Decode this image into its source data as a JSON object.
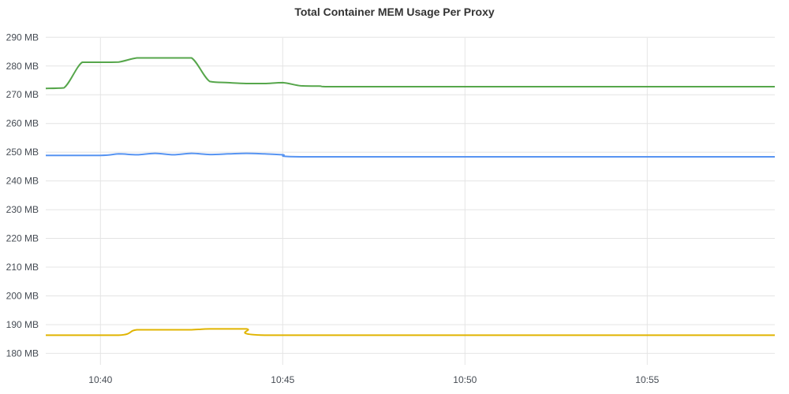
{
  "panel": {
    "title": "Total Container MEM Usage Per Proxy"
  },
  "chart_data": {
    "type": "line",
    "title": "Total Container MEM Usage Per Proxy",
    "xlabel": "",
    "ylabel": "",
    "grid": true,
    "legend": "none",
    "x_range": [
      "10:38:30",
      "10:58:30"
    ],
    "ylim": [
      176,
      292
    ],
    "y_ticks": [
      180,
      190,
      200,
      210,
      220,
      230,
      240,
      250,
      260,
      270,
      280,
      290
    ],
    "y_tick_labels": [
      "180 MB",
      "190 MB",
      "200 MB",
      "210 MB",
      "220 MB",
      "230 MB",
      "240 MB",
      "250 MB",
      "260 MB",
      "270 MB",
      "280 MB",
      "290 MB"
    ],
    "x_ticks": [
      "10:40",
      "10:45",
      "10:50",
      "10:55"
    ],
    "series": [
      {
        "color": "#56a64b",
        "x": [
          "10:38:30",
          "10:39:00",
          "10:39:30",
          "10:40:00",
          "10:40:30",
          "10:41:00",
          "10:41:30",
          "10:42:00",
          "10:42:30",
          "10:43:00",
          "10:43:30",
          "10:44:00",
          "10:44:30",
          "10:45:00",
          "10:45:30",
          "10:46:00",
          "10:46:30",
          "10:50:00",
          "10:55:00",
          "10:58:30"
        ],
        "values": [
          272.2,
          272.4,
          281.3,
          281.3,
          281.4,
          282.8,
          282.8,
          282.8,
          282.8,
          274.6,
          274.2,
          273.9,
          273.9,
          274.2,
          273.1,
          273.0,
          272.8,
          272.8,
          272.8,
          272.8
        ]
      },
      {
        "color": "#5794f2",
        "x": [
          "10:38:30",
          "10:40:00",
          "10:40:30",
          "10:41:00",
          "10:41:30",
          "10:42:00",
          "10:42:30",
          "10:43:00",
          "10:43:30",
          "10:44:00",
          "10:44:30",
          "10:45:00",
          "10:45:30",
          "10:50:00",
          "10:55:00",
          "10:58:30"
        ],
        "values": [
          248.9,
          248.9,
          249.4,
          249.1,
          249.6,
          249.1,
          249.6,
          249.2,
          249.4,
          249.6,
          249.4,
          249.1,
          248.4,
          248.4,
          248.4,
          248.4
        ]
      },
      {
        "color": "#e0b400",
        "x": [
          "10:38:30",
          "10:40:30",
          "10:41:00",
          "10:42:00",
          "10:42:30",
          "10:43:00",
          "10:44:00",
          "10:44:30",
          "10:50:00",
          "10:55:00",
          "10:58:30"
        ],
        "values": [
          186.3,
          186.3,
          188.2,
          188.2,
          188.2,
          188.5,
          188.5,
          186.3,
          186.3,
          186.3,
          186.3
        ]
      }
    ]
  }
}
